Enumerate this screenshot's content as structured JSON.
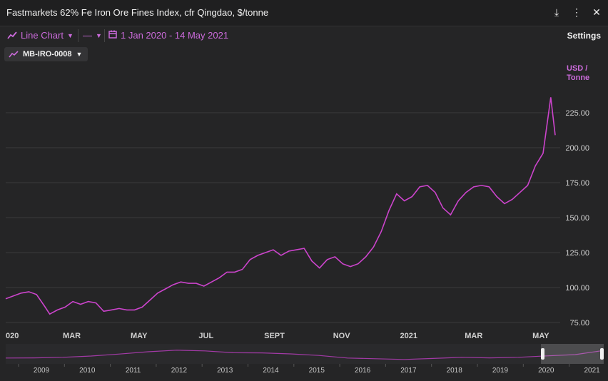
{
  "header": {
    "title": "Fastmarkets 62% Fe Iron Ore Fines Index, cfr Qingdao, $/tonne",
    "download_icon": "download-icon",
    "menu_icon": "more-vertical-icon",
    "close_icon": "close-icon"
  },
  "toolbar": {
    "chart_type_label": "Line Chart",
    "line_style_label": "—",
    "date_range_label": "1 Jan 2020 - 14 May 2021",
    "settings_label": "Settings"
  },
  "series_chip": {
    "label": "MB-IRO-0008"
  },
  "colors": {
    "series": "#cc44cc",
    "background": "#252526"
  },
  "chart_data": {
    "type": "line",
    "title": "Fastmarkets 62% Fe Iron Ore Fines Index, cfr Qingdao, $/tonne",
    "ylabel": "USD / Tonne",
    "ylabel_line1": "USD /",
    "ylabel_line2": "Tonne",
    "ylim": [
      75,
      240
    ],
    "yticks": [
      75,
      100,
      125,
      150,
      175,
      200,
      225
    ],
    "ytick_labels": [
      "75.00",
      "100.00",
      "125.00",
      "150.00",
      "175.00",
      "200.00",
      "225.00"
    ],
    "xticks": [
      {
        "date": "2020-01-01",
        "label": "020"
      },
      {
        "date": "2020-03-01",
        "label": "MAR"
      },
      {
        "date": "2020-05-01",
        "label": "MAY"
      },
      {
        "date": "2020-07-01",
        "label": "JUL"
      },
      {
        "date": "2020-09-01",
        "label": "SEPT"
      },
      {
        "date": "2020-11-01",
        "label": "NOV"
      },
      {
        "date": "2021-01-01",
        "label": "2021"
      },
      {
        "date": "2021-03-01",
        "label": "MAR"
      },
      {
        "date": "2021-05-01",
        "label": "MAY"
      }
    ],
    "grid": true,
    "legend": "top-left",
    "series": [
      {
        "name": "MB-IRO-0008",
        "points": [
          [
            "2020-01-01",
            92
          ],
          [
            "2020-01-08",
            94
          ],
          [
            "2020-01-15",
            96
          ],
          [
            "2020-01-22",
            97
          ],
          [
            "2020-01-29",
            95
          ],
          [
            "2020-02-05",
            87
          ],
          [
            "2020-02-10",
            81
          ],
          [
            "2020-02-17",
            84
          ],
          [
            "2020-02-24",
            86
          ],
          [
            "2020-03-02",
            90
          ],
          [
            "2020-03-09",
            88
          ],
          [
            "2020-03-16",
            90
          ],
          [
            "2020-03-23",
            89
          ],
          [
            "2020-03-30",
            83
          ],
          [
            "2020-04-06",
            84
          ],
          [
            "2020-04-13",
            85
          ],
          [
            "2020-04-20",
            84
          ],
          [
            "2020-04-27",
            84
          ],
          [
            "2020-05-04",
            86
          ],
          [
            "2020-05-11",
            91
          ],
          [
            "2020-05-18",
            96
          ],
          [
            "2020-05-25",
            99
          ],
          [
            "2020-06-01",
            102
          ],
          [
            "2020-06-08",
            104
          ],
          [
            "2020-06-15",
            103
          ],
          [
            "2020-06-22",
            103
          ],
          [
            "2020-06-29",
            101
          ],
          [
            "2020-07-06",
            104
          ],
          [
            "2020-07-13",
            107
          ],
          [
            "2020-07-20",
            111
          ],
          [
            "2020-07-27",
            111
          ],
          [
            "2020-08-03",
            113
          ],
          [
            "2020-08-10",
            120
          ],
          [
            "2020-08-17",
            123
          ],
          [
            "2020-08-24",
            125
          ],
          [
            "2020-08-31",
            127
          ],
          [
            "2020-09-07",
            123
          ],
          [
            "2020-09-14",
            126
          ],
          [
            "2020-09-21",
            127
          ],
          [
            "2020-09-28",
            128
          ],
          [
            "2020-10-05",
            119
          ],
          [
            "2020-10-12",
            114
          ],
          [
            "2020-10-19",
            120
          ],
          [
            "2020-10-26",
            122
          ],
          [
            "2020-11-02",
            117
          ],
          [
            "2020-11-09",
            115
          ],
          [
            "2020-11-16",
            117
          ],
          [
            "2020-11-23",
            122
          ],
          [
            "2020-11-30",
            129
          ],
          [
            "2020-12-07",
            140
          ],
          [
            "2020-12-14",
            155
          ],
          [
            "2020-12-21",
            167
          ],
          [
            "2020-12-28",
            162
          ],
          [
            "2021-01-04",
            165
          ],
          [
            "2021-01-11",
            172
          ],
          [
            "2021-01-18",
            173
          ],
          [
            "2021-01-25",
            168
          ],
          [
            "2021-02-01",
            157
          ],
          [
            "2021-02-08",
            152
          ],
          [
            "2021-02-15",
            162
          ],
          [
            "2021-02-22",
            168
          ],
          [
            "2021-03-01",
            172
          ],
          [
            "2021-03-08",
            173
          ],
          [
            "2021-03-15",
            172
          ],
          [
            "2021-03-22",
            165
          ],
          [
            "2021-03-29",
            160
          ],
          [
            "2021-04-05",
            163
          ],
          [
            "2021-04-12",
            168
          ],
          [
            "2021-04-19",
            173
          ],
          [
            "2021-04-26",
            187
          ],
          [
            "2021-05-03",
            196
          ],
          [
            "2021-05-10",
            236
          ],
          [
            "2021-05-14",
            209
          ]
        ]
      }
    ]
  },
  "navigator": {
    "year_labels": [
      "2009",
      "2010",
      "2011",
      "2012",
      "2013",
      "2014",
      "2015",
      "2016",
      "2017",
      "2018",
      "2019",
      "2020",
      "2021"
    ],
    "series": [
      62,
      64,
      72,
      90,
      118,
      150,
      172,
      162,
      136,
      134,
      120,
      98,
      62,
      52,
      42,
      56,
      72,
      64,
      72,
      92,
      110,
      168
    ],
    "window": [
      0.895,
      1.0
    ]
  }
}
